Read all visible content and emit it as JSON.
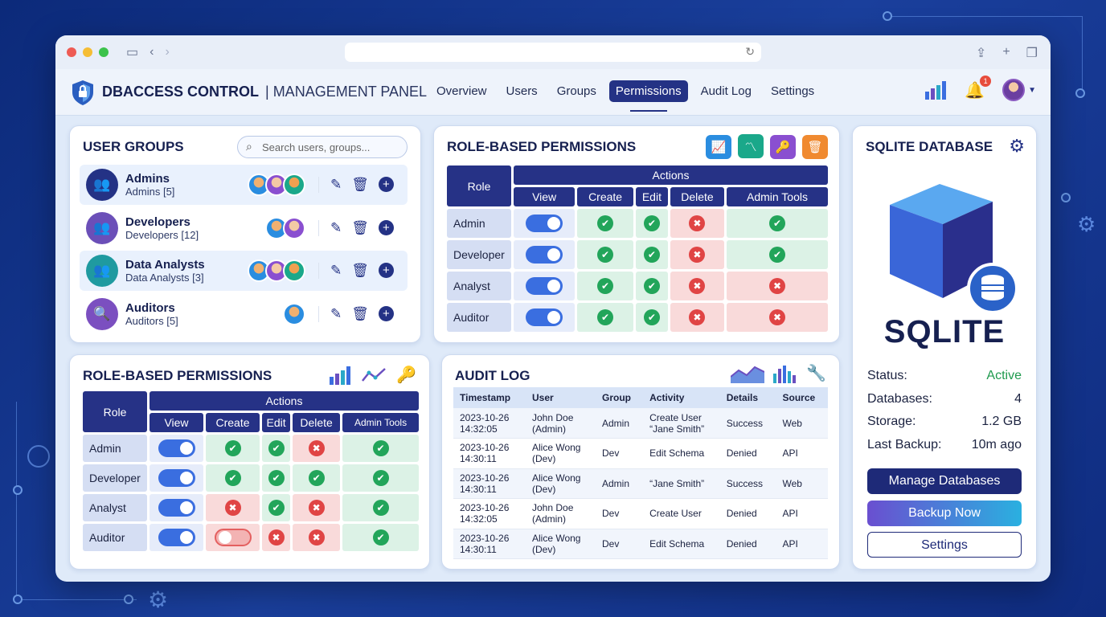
{
  "header": {
    "brand_bold": "DBACCESS CONTROL",
    "brand_rest": "| MANAGEMENT PANEL",
    "notification_count": "1"
  },
  "nav": [
    {
      "label": "Overview"
    },
    {
      "label": "Users"
    },
    {
      "label": "Groups"
    },
    {
      "label": "Permissions",
      "active": true
    },
    {
      "label": "Audit Log"
    },
    {
      "label": "Settings"
    }
  ],
  "groups_card": {
    "title": "USER GROUPS",
    "search_placeholder": "Search users, groups...",
    "items": [
      {
        "name": "Admins",
        "sub": "Admins [5]",
        "color": "#243285",
        "icon": "users-icon",
        "avatars": 3
      },
      {
        "name": "Developers",
        "sub": "Developers [12]",
        "color": "#6b4fb8",
        "icon": "users-icon",
        "avatars": 2
      },
      {
        "name": "Data Analysts",
        "sub": "Data Analysts [3]",
        "color": "#1f9aa0",
        "icon": "users-icon",
        "avatars": 3
      },
      {
        "name": "Auditors",
        "sub": "Auditors [5]",
        "color": "#7b4fc0",
        "icon": "user-search-icon",
        "avatars": 1
      }
    ]
  },
  "perm_top": {
    "title": "ROLE-BASED PERMISSIONS",
    "role_header": "Role",
    "actions_header": "Actions",
    "columns": [
      "View",
      "Create",
      "Edit",
      "Delete",
      "Admin Tools"
    ],
    "rows": [
      {
        "role": "Admin",
        "view": "on",
        "cells": [
          "yes",
          "yes",
          "no",
          "yes"
        ]
      },
      {
        "role": "Developer",
        "view": "on",
        "cells": [
          "yes",
          "yes",
          "no",
          "yes"
        ]
      },
      {
        "role": "Analyst",
        "view": "on",
        "cells": [
          "yes",
          "yes",
          "no",
          "no"
        ]
      },
      {
        "role": "Auditor",
        "view": "on",
        "cells": [
          "yes",
          "yes",
          "no",
          "no"
        ]
      }
    ]
  },
  "perm_bottom": {
    "title": "ROLE-BASED PERMISSIONS",
    "role_header": "Role",
    "actions_header": "Actions",
    "columns": [
      "View",
      "Create",
      "Edit",
      "Delete",
      "Admin Tools"
    ],
    "rows": [
      {
        "role": "Admin",
        "view": "on",
        "cells": [
          "yes",
          "yes",
          "no",
          "yes"
        ]
      },
      {
        "role": "Developer",
        "view": "on",
        "cells": [
          "yes",
          "yes",
          "yes",
          "yes"
        ]
      },
      {
        "role": "Analyst",
        "view": "on",
        "cells": [
          "no",
          "yes",
          "no",
          "yes"
        ]
      },
      {
        "role": "Auditor",
        "view": "on",
        "cells": [
          "off",
          "no",
          "no",
          "yes"
        ]
      }
    ]
  },
  "audit": {
    "title": "AUDIT LOG",
    "columns": [
      "Timestamp",
      "User",
      "Group",
      "Activity",
      "Details",
      "Source"
    ],
    "rows": [
      {
        "ts1": "2023-10-26",
        "ts2": "14:32:05",
        "u1": "John Doe",
        "u2": "(Admin)",
        "group": "Admin",
        "a1": "Create User",
        "a2": "“Jane Smith”",
        "details": "Success",
        "source": "Web"
      },
      {
        "ts1": "2023-10-26",
        "ts2": "14:30:11",
        "u1": "Alice Wong",
        "u2": "(Dev)",
        "group": "Dev",
        "a1": "Edit Schema",
        "a2": "",
        "details": "Denied",
        "source": "API"
      },
      {
        "ts1": "2023-10-26",
        "ts2": "14:30:11",
        "u1": "Alice Wong",
        "u2": "(Dev)",
        "group": "Admin",
        "a1": "“Jane Smith”",
        "a2": "",
        "details": "Success",
        "source": "Web"
      },
      {
        "ts1": "2023-10-26",
        "ts2": "14:32:05",
        "u1": "John Doe",
        "u2": "(Admin)",
        "group": "Dev",
        "a1": "Create User",
        "a2": "",
        "details": "Denied",
        "source": "API"
      },
      {
        "ts1": "2023-10-26",
        "ts2": "14:30:11",
        "u1": "Alice Wong",
        "u2": "(Dev)",
        "group": "Dev",
        "a1": "Edit Schema",
        "a2": "",
        "details": "Denied",
        "source": "API"
      }
    ]
  },
  "sqlite": {
    "title": "SQLITE DATABASE",
    "logo_text": "SQLITE",
    "stats": [
      {
        "label": "Status:",
        "value": "Active"
      },
      {
        "label": "Databases:",
        "value": "4"
      },
      {
        "label": "Storage:",
        "value": "1.2 GB"
      },
      {
        "label": "Last Backup:",
        "value": "10m ago"
      }
    ],
    "buttons": [
      "Manage Databases",
      "Backup Now",
      "Settings"
    ]
  }
}
